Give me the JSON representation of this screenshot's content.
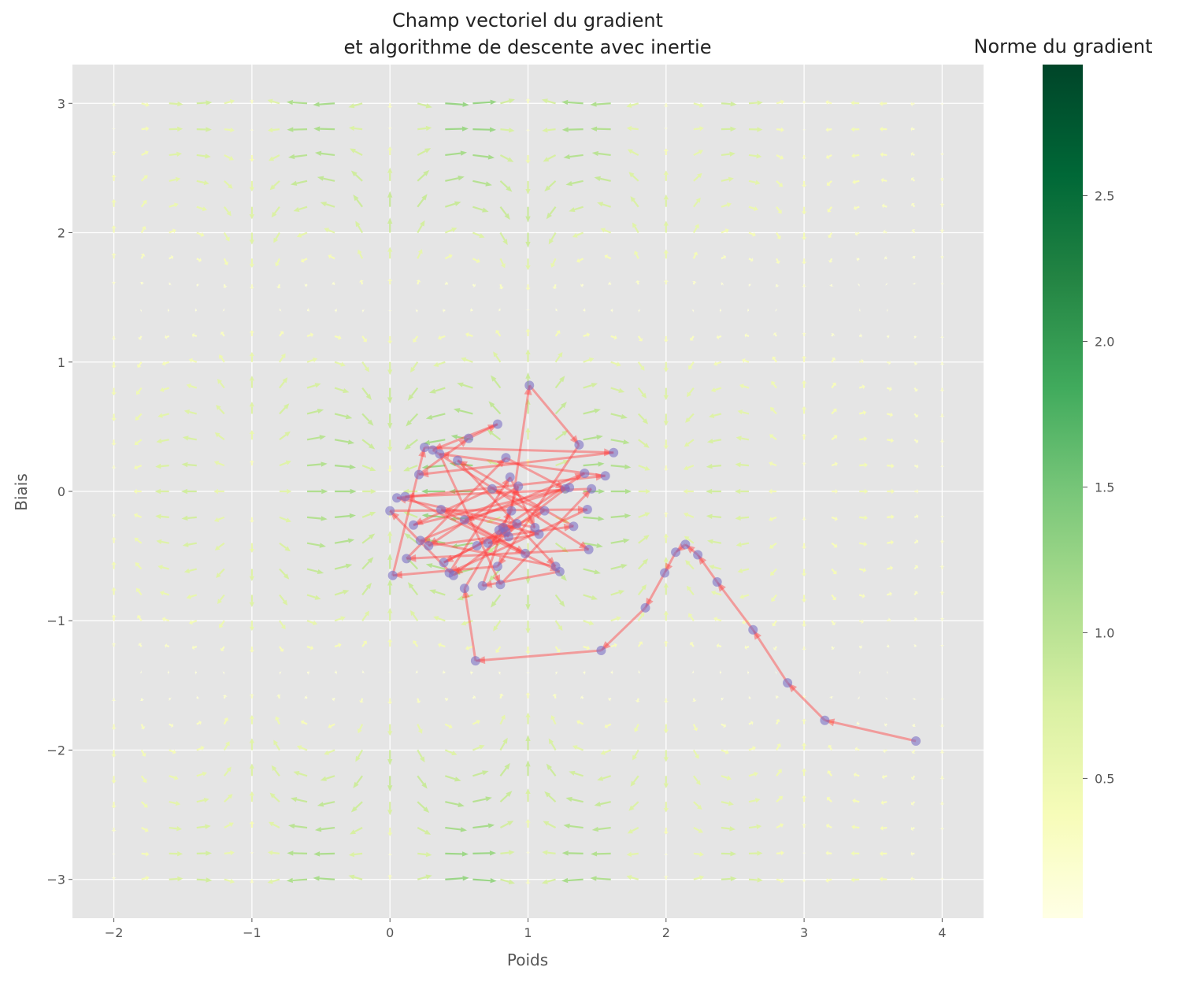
{
  "chart_data": {
    "type": "quiver",
    "title_line1": "Champ vectoriel du gradient",
    "title_line2": "et algorithme de descente avec inertie",
    "xlabel": "Poids",
    "ylabel": "Biais",
    "xlim": [
      -2.3,
      4.3
    ],
    "ylim": [
      -3.3,
      3.3
    ],
    "xticks": [
      -2,
      -1,
      0,
      1,
      2,
      3,
      4
    ],
    "yticks": [
      -3,
      -2,
      -1,
      0,
      1,
      2,
      3
    ],
    "xtick_labels": [
      "−2",
      "−1",
      "0",
      "1",
      "2",
      "3",
      "4"
    ],
    "ytick_labels": [
      "−3",
      "−2",
      "−1",
      "0",
      "1",
      "2",
      "3"
    ],
    "grid": true,
    "background": "#e5e5e5",
    "colormap": "YlGn",
    "colorbar": {
      "title": "Norme du gradient",
      "range": [
        0.02,
        2.95
      ],
      "ticks": [
        0.5,
        1.0,
        1.5,
        2.0,
        2.5
      ],
      "tick_labels": [
        "0.5",
        "1.0",
        "1.5",
        "2.0",
        "2.5"
      ]
    },
    "path_color": "#ff4040",
    "point_color": "#7b6fc4",
    "trajectory": [
      [
        3.81,
        -1.93
      ],
      [
        3.15,
        -1.77
      ],
      [
        2.88,
        -1.48
      ],
      [
        2.63,
        -1.07
      ],
      [
        2.37,
        -0.7
      ],
      [
        2.23,
        -0.49
      ],
      [
        2.14,
        -0.41
      ],
      [
        2.07,
        -0.47
      ],
      [
        1.99,
        -0.63
      ],
      [
        1.85,
        -0.9
      ],
      [
        1.53,
        -1.23
      ],
      [
        0.62,
        -1.31
      ],
      [
        0.54,
        -0.75
      ],
      [
        0.88,
        -0.15
      ],
      [
        1.01,
        0.82
      ],
      [
        1.37,
        0.36
      ],
      [
        0.78,
        -0.58
      ],
      [
        0.02,
        -0.65
      ],
      [
        0.25,
        0.34
      ],
      [
        1.62,
        0.3
      ],
      [
        0.21,
        0.13
      ],
      [
        0.57,
        0.41
      ],
      [
        0.78,
        0.52
      ],
      [
        0.31,
        0.32
      ],
      [
        1.44,
        -0.45
      ],
      [
        0.12,
        -0.52
      ],
      [
        0.84,
        0.26
      ],
      [
        1.27,
        0.02
      ],
      [
        0.46,
        -0.65
      ],
      [
        0.0,
        -0.15
      ],
      [
        1.43,
        -0.14
      ],
      [
        0.43,
        -0.63
      ],
      [
        0.87,
        0.11
      ],
      [
        1.05,
        -0.28
      ],
      [
        0.05,
        -0.05
      ],
      [
        1.56,
        0.12
      ],
      [
        0.36,
        0.29
      ],
      [
        0.8,
        -0.72
      ],
      [
        1.46,
        0.02
      ],
      [
        0.11,
        -0.04
      ],
      [
        1.23,
        -0.62
      ],
      [
        0.67,
        -0.73
      ],
      [
        0.93,
        0.04
      ],
      [
        0.28,
        -0.42
      ],
      [
        1.33,
        -0.27
      ],
      [
        0.49,
        0.24
      ],
      [
        1.2,
        -0.58
      ],
      [
        0.22,
        -0.38
      ],
      [
        1.41,
        0.14
      ],
      [
        0.63,
        -0.42
      ],
      [
        0.39,
        -0.55
      ],
      [
        1.12,
        -0.15
      ],
      [
        0.74,
        0.02
      ],
      [
        0.17,
        -0.26
      ],
      [
        1.3,
        0.03
      ],
      [
        0.54,
        -0.22
      ],
      [
        0.98,
        -0.48
      ],
      [
        0.37,
        -0.14
      ],
      [
        1.08,
        -0.33
      ],
      [
        0.71,
        -0.4
      ],
      [
        0.92,
        -0.25
      ],
      [
        0.79,
        -0.3
      ],
      [
        0.86,
        -0.35
      ],
      [
        0.82,
        -0.28
      ],
      [
        0.84,
        -0.31
      ]
    ]
  }
}
